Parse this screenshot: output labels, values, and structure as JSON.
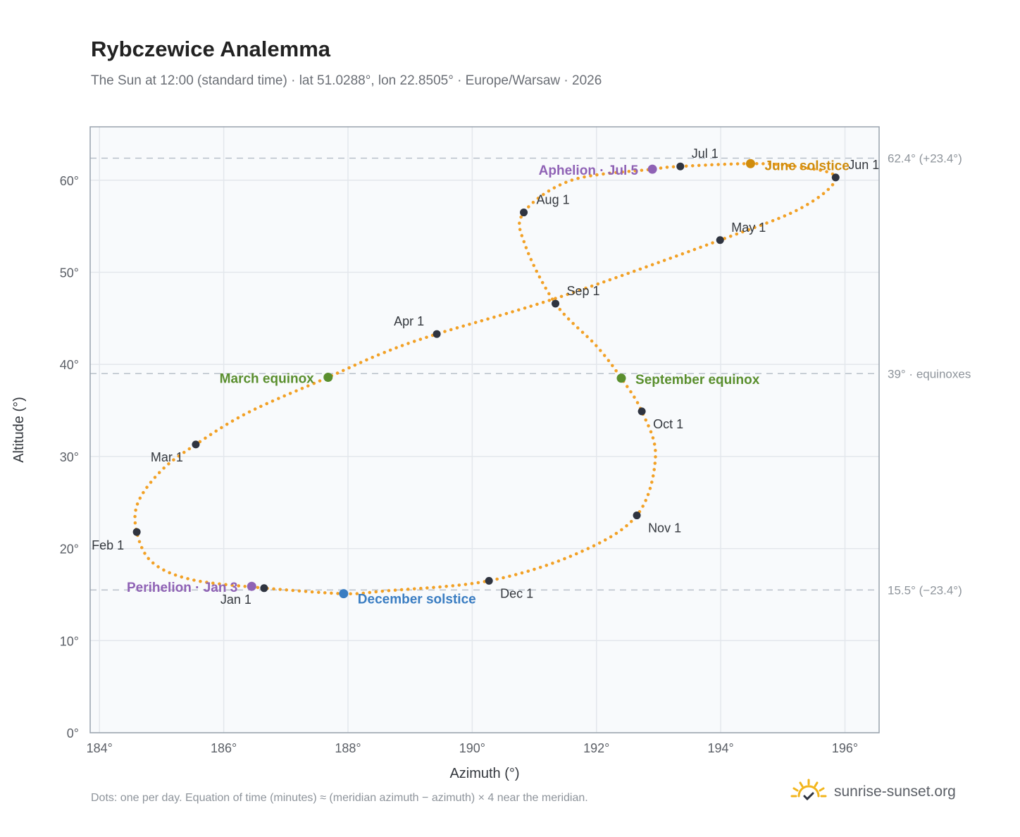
{
  "chart_data": {
    "type": "scatter",
    "title": "Rybczewice Analemma",
    "subtitle": "The Sun at 12:00 (standard time) · lat 51.0288°, lon 22.8505° · Europe/Warsaw · 2026",
    "xlabel": "Azimuth (°)",
    "ylabel": "Altitude (°)",
    "xlim": [
      183.85,
      196.55
    ],
    "ylim": [
      0,
      65.8
    ],
    "xticks": [
      184,
      186,
      188,
      190,
      192,
      194,
      196
    ],
    "yticks": [
      0,
      10,
      20,
      30,
      40,
      50,
      60
    ],
    "grid": true,
    "series": [
      {
        "color": "#f2a126",
        "points": [
          [
            186.65,
            15.7
          ],
          [
            185.5,
            16.6
          ],
          [
            184.85,
            18.5
          ],
          [
            184.6,
            21.8
          ],
          [
            184.62,
            25.0
          ],
          [
            185.0,
            28.5
          ],
          [
            185.55,
            31.3
          ],
          [
            186.4,
            34.8
          ],
          [
            187.68,
            38.6
          ],
          [
            188.55,
            41.2
          ],
          [
            189.43,
            43.3
          ],
          [
            191.4,
            47.3
          ],
          [
            193.99,
            53.5
          ],
          [
            195.3,
            57.0
          ],
          [
            195.85,
            60.3
          ],
          [
            195.2,
            61.5
          ],
          [
            194.48,
            61.8
          ],
          [
            193.35,
            61.5
          ],
          [
            192.9,
            61.2
          ],
          [
            191.6,
            60.0
          ],
          [
            190.83,
            56.5
          ],
          [
            190.85,
            53.0
          ],
          [
            191.34,
            46.6
          ],
          [
            192.0,
            42.0
          ],
          [
            192.4,
            38.5
          ],
          [
            192.73,
            34.9
          ],
          [
            192.95,
            30.0
          ],
          [
            192.65,
            23.6
          ],
          [
            191.7,
            19.5
          ],
          [
            190.27,
            16.5
          ],
          [
            188.6,
            15.4
          ],
          [
            187.93,
            15.1
          ],
          [
            186.65,
            15.7
          ]
        ]
      }
    ],
    "month_markers": [
      {
        "label": "Jan 1",
        "x": 186.65,
        "y": 15.7
      },
      {
        "label": "Feb 1",
        "x": 184.6,
        "y": 21.8
      },
      {
        "label": "Mar 1",
        "x": 185.55,
        "y": 31.3
      },
      {
        "label": "Apr 1",
        "x": 189.43,
        "y": 43.3
      },
      {
        "label": "May 1",
        "x": 193.99,
        "y": 53.5
      },
      {
        "label": "Jun 1",
        "x": 195.85,
        "y": 60.3
      },
      {
        "label": "Jul 1",
        "x": 193.35,
        "y": 61.5
      },
      {
        "label": "Aug 1",
        "x": 190.83,
        "y": 56.5
      },
      {
        "label": "Sep 1",
        "x": 191.34,
        "y": 46.6
      },
      {
        "label": "Oct 1",
        "x": 192.73,
        "y": 34.9
      },
      {
        "label": "Nov 1",
        "x": 192.65,
        "y": 23.6
      },
      {
        "label": "Dec 1",
        "x": 190.27,
        "y": 16.5
      }
    ],
    "events": [
      {
        "label": "Perihelion · Jan 3",
        "x": 186.45,
        "y": 15.9,
        "color": "#8f62b5"
      },
      {
        "label": "December solstice",
        "x": 187.93,
        "y": 15.1,
        "color": "#3a7dc2"
      },
      {
        "label": "March equinox",
        "x": 187.68,
        "y": 38.6,
        "color": "#5a8f2e"
      },
      {
        "label": "September equinox",
        "x": 192.4,
        "y": 38.5,
        "color": "#5a8f2e"
      },
      {
        "label": "June solstice",
        "x": 194.48,
        "y": 61.8,
        "color": "#d08c0c"
      },
      {
        "label": "Aphelion · Jul 5",
        "x": 192.9,
        "y": 61.2,
        "color": "#8f62b5"
      }
    ],
    "reference_lines": [
      {
        "y": 62.4,
        "label": "62.4° (+23.4°)"
      },
      {
        "y": 39.0,
        "label": "39° · equinoxes"
      },
      {
        "y": 15.5,
        "label": "15.5° (−23.4°)"
      }
    ],
    "footnote": "Dots: one per day. Equation of time (minutes) ≈ (meridian azimuth − azimuth) × 4 near the meridian."
  },
  "brand": {
    "text": "sunrise-sunset.org"
  },
  "colors": {
    "curve": "#f2a126",
    "marker": "#2f3440",
    "plot_bg": "#f8fafc",
    "grid": "#e3e7ec"
  }
}
